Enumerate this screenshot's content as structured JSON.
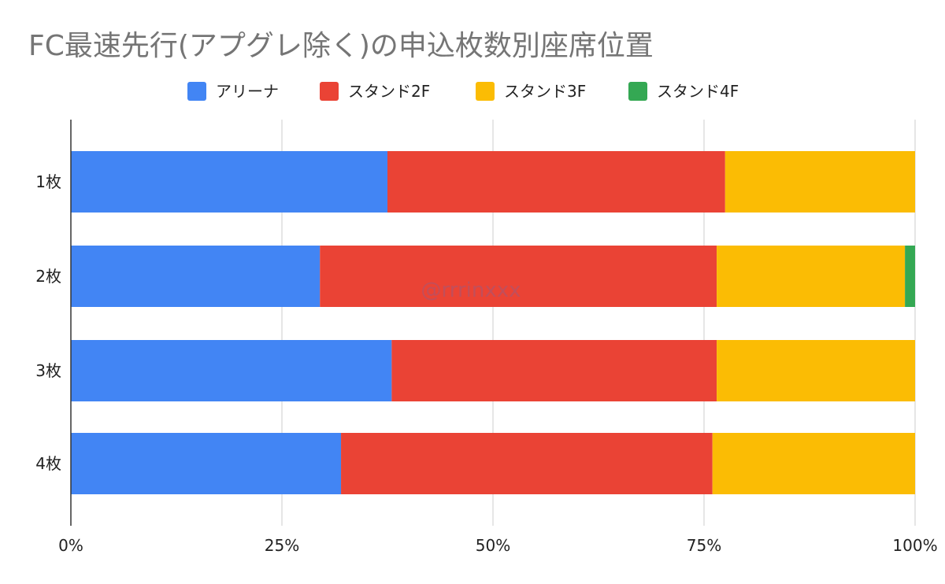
{
  "chart_data": {
    "type": "bar",
    "orientation": "horizontal",
    "stacked": "percent",
    "title": "FC最速先行(アプグレ除く)の申込枚数別座席位置",
    "categories": [
      "1枚",
      "2枚",
      "3枚",
      "4枚"
    ],
    "series": [
      {
        "name": "アリーナ",
        "color": "#4285F4",
        "values": [
          37.5,
          29.5,
          38.0,
          32.0
        ]
      },
      {
        "name": "スタンド2F",
        "color": "#EA4335",
        "values": [
          40.0,
          47.0,
          38.5,
          44.0
        ]
      },
      {
        "name": "スタンド3F",
        "color": "#FBBC04",
        "values": [
          22.5,
          22.3,
          23.5,
          24.0
        ]
      },
      {
        "name": "スタンド4F",
        "color": "#34A853",
        "values": [
          0,
          1.2,
          0,
          0
        ]
      }
    ],
    "x_ticks": [
      "0%",
      "25%",
      "50%",
      "75%",
      "100%"
    ],
    "xlim": [
      0,
      100
    ],
    "grid": true,
    "legend_position": "top",
    "watermark": "@rrrinxxx"
  }
}
